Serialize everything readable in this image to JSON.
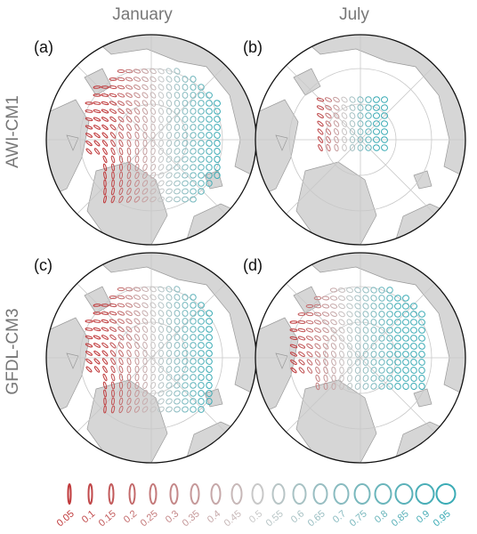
{
  "column_titles": [
    "January",
    "July"
  ],
  "row_labels": [
    "AWI-CM1",
    "GFDL-CM3"
  ],
  "panels": [
    {
      "label": "(a)"
    },
    {
      "label": "(b)"
    },
    {
      "label": "(c)"
    },
    {
      "label": "(d)"
    }
  ],
  "legend": {
    "labels": [
      0.05,
      0.1,
      0.15,
      0.2,
      0.25,
      0.3,
      0.35,
      0.4,
      0.45,
      0.5,
      0.55,
      0.6,
      0.65,
      0.7,
      0.75,
      0.8,
      0.85,
      0.9,
      0.95
    ]
  }
}
